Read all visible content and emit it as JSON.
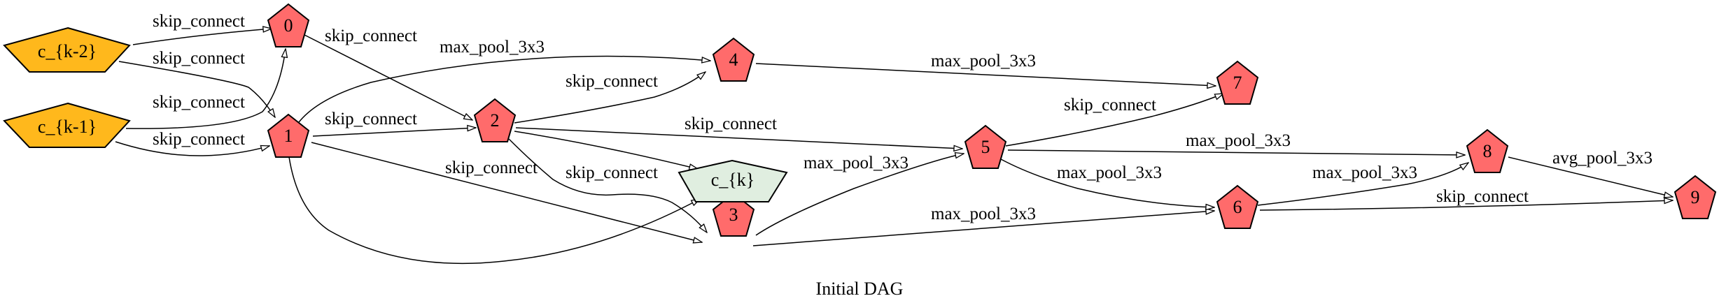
{
  "diagram": {
    "caption": "Initial DAG",
    "colors": {
      "input_node": "#FFB81C",
      "op_node": "#FF6B6B",
      "output_node": "#E0EEE0",
      "stroke": "#000000",
      "background": "#FFFFFF"
    },
    "nodes": [
      {
        "id": "c_km2",
        "label": "c_{k-2}",
        "kind": "input",
        "icon": "pentagon-wide"
      },
      {
        "id": "c_km1",
        "label": "c_{k-1}",
        "kind": "input",
        "icon": "pentagon-wide"
      },
      {
        "id": "n0",
        "label": "0",
        "kind": "op",
        "icon": "pentagon"
      },
      {
        "id": "n1",
        "label": "1",
        "kind": "op",
        "icon": "pentagon"
      },
      {
        "id": "n2",
        "label": "2",
        "kind": "op",
        "icon": "pentagon"
      },
      {
        "id": "n3",
        "label": "3",
        "kind": "op",
        "icon": "pentagon"
      },
      {
        "id": "n4",
        "label": "4",
        "kind": "op",
        "icon": "pentagon"
      },
      {
        "id": "n5",
        "label": "5",
        "kind": "op",
        "icon": "pentagon"
      },
      {
        "id": "n6",
        "label": "6",
        "kind": "op",
        "icon": "pentagon"
      },
      {
        "id": "n7",
        "label": "7",
        "kind": "op",
        "icon": "pentagon"
      },
      {
        "id": "n8",
        "label": "8",
        "kind": "op",
        "icon": "pentagon"
      },
      {
        "id": "n9",
        "label": "9",
        "kind": "op",
        "icon": "pentagon"
      },
      {
        "id": "c_k",
        "label": "c_{k}",
        "kind": "output",
        "icon": "pentagon-wide"
      }
    ],
    "edges": [
      {
        "id": "e_km2_0",
        "from": "c_{k-2}",
        "to": "0",
        "label": "skip_connect"
      },
      {
        "id": "e_km2_1",
        "from": "c_{k-2}",
        "to": "1",
        "label": "skip_connect"
      },
      {
        "id": "e_km1_0",
        "from": "c_{k-1}",
        "to": "0",
        "label": "skip_connect"
      },
      {
        "id": "e_km1_1",
        "from": "c_{k-1}",
        "to": "1",
        "label": "skip_connect"
      },
      {
        "id": "e_0_2",
        "from": "0",
        "to": "2",
        "label": "skip_connect"
      },
      {
        "id": "e_1_4",
        "from": "1",
        "to": "4",
        "label": "max_pool_3x3"
      },
      {
        "id": "e_1_2",
        "from": "1",
        "to": "2",
        "label": "skip_connect"
      },
      {
        "id": "e_1_3",
        "from": "1",
        "to": "3",
        "label": "skip_connect"
      },
      {
        "id": "e_1_ck",
        "from": "1",
        "to": "c_{k}",
        "label": ""
      },
      {
        "id": "e_2_4",
        "from": "2",
        "to": "4",
        "label": "skip_connect"
      },
      {
        "id": "e_2_5",
        "from": "2",
        "to": "5",
        "label": "skip_connect"
      },
      {
        "id": "e_2_ck",
        "from": "2",
        "to": "c_{k}",
        "label": ""
      },
      {
        "id": "e_2_3",
        "from": "2",
        "to": "3",
        "label": "skip_connect"
      },
      {
        "id": "e_3_5",
        "from": "3",
        "to": "5",
        "label": "max_pool_3x3"
      },
      {
        "id": "e_3_6",
        "from": "3",
        "to": "6",
        "label": "max_pool_3x3"
      },
      {
        "id": "e_4_7",
        "from": "4",
        "to": "7",
        "label": "max_pool_3x3"
      },
      {
        "id": "e_5_7",
        "from": "5",
        "to": "7",
        "label": "skip_connect"
      },
      {
        "id": "e_5_8",
        "from": "5",
        "to": "8",
        "label": "max_pool_3x3"
      },
      {
        "id": "e_5_6",
        "from": "5",
        "to": "6",
        "label": "max_pool_3x3"
      },
      {
        "id": "e_6_8",
        "from": "6",
        "to": "8",
        "label": "max_pool_3x3"
      },
      {
        "id": "e_6_9",
        "from": "6",
        "to": "9",
        "label": "skip_connect"
      },
      {
        "id": "e_8_9",
        "from": "8",
        "to": "9",
        "label": "avg_pool_3x3"
      }
    ]
  }
}
